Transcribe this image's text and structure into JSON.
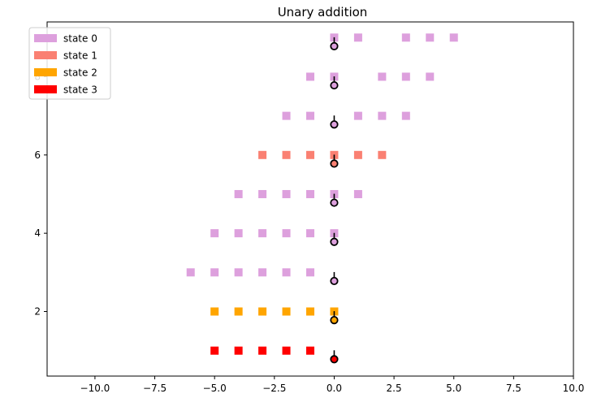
{
  "chart_data": {
    "type": "scatter",
    "title": "Unary addition",
    "xlabel": "",
    "ylabel": "",
    "xlim": [
      -12,
      10
    ],
    "ylim": [
      0.35,
      9.4
    ],
    "xticks": [
      -10.0,
      -7.5,
      -5.0,
      -2.5,
      0.0,
      2.5,
      5.0,
      7.5,
      10.0
    ],
    "xtick_labels": [
      "−10.0",
      "−7.5",
      "−5.0",
      "−2.5",
      "0.0",
      "2.5",
      "5.0",
      "7.5",
      "10.0"
    ],
    "yticks": [
      2,
      4,
      6,
      8
    ],
    "ytick_labels": [
      "2",
      "4",
      "6",
      "8"
    ],
    "grid": false,
    "legend_position": "top-left",
    "legend": [
      {
        "label": "state 0",
        "color": "#dda0dd"
      },
      {
        "label": "state 1",
        "color": "#fa8072"
      },
      {
        "label": "state 2",
        "color": "#ffa500"
      },
      {
        "label": "state 3",
        "color": "#ff0000"
      }
    ],
    "tape_rows": [
      {
        "y": 1,
        "state": 3,
        "cells": [
          -5,
          -4,
          -3,
          -2,
          -1
        ]
      },
      {
        "y": 2,
        "state": 2,
        "cells": [
          -5,
          -4,
          -3,
          -2,
          -1,
          0
        ]
      },
      {
        "y": 3,
        "state": 0,
        "cells": [
          -6,
          -5,
          -4,
          -3,
          -2,
          -1
        ]
      },
      {
        "y": 4,
        "state": 0,
        "cells": [
          -5,
          -4,
          -3,
          -2,
          -1,
          0
        ]
      },
      {
        "y": 5,
        "state": 0,
        "cells": [
          -4,
          -3,
          -2,
          -1,
          0,
          1
        ]
      },
      {
        "y": 6,
        "state": 1,
        "cells": [
          -3,
          -2,
          -1,
          0,
          1,
          2
        ]
      },
      {
        "y": 7,
        "state": 0,
        "cells": [
          -2,
          -1,
          1,
          2,
          3
        ]
      },
      {
        "y": 8,
        "state": 0,
        "cells": [
          -1,
          0,
          2,
          3,
          4
        ]
      },
      {
        "y": 9,
        "state": 0,
        "cells": [
          0,
          1,
          3,
          4,
          5
        ]
      }
    ],
    "heads": [
      {
        "x": 0,
        "y": 0.78,
        "state": 3
      },
      {
        "x": 0,
        "y": 1.78,
        "state": 2
      },
      {
        "x": 0,
        "y": 2.78,
        "state": 0
      },
      {
        "x": 0,
        "y": 3.78,
        "state": 0
      },
      {
        "x": 0,
        "y": 4.78,
        "state": 0
      },
      {
        "x": 0,
        "y": 5.78,
        "state": 1
      },
      {
        "x": 0,
        "y": 6.78,
        "state": 0
      },
      {
        "x": 0,
        "y": 7.78,
        "state": 0
      },
      {
        "x": 0,
        "y": 8.78,
        "state": 0
      }
    ]
  }
}
